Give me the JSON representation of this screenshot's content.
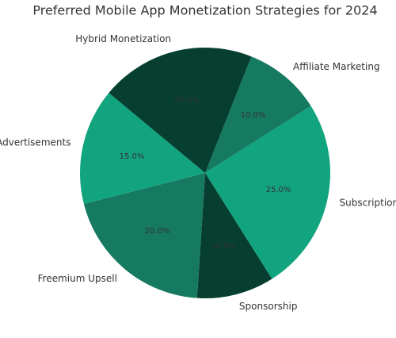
{
  "chart_data": {
    "type": "pie",
    "title": "Preferred Mobile App Monetization Strategies for 2024",
    "categories": [
      "Affiliate Marketing",
      "Subscription",
      "Sponsorship",
      "Freemium Upsell",
      "Advertisements",
      "Hybrid Monetization"
    ],
    "values": [
      10,
      25,
      10,
      20,
      15,
      20
    ],
    "value_labels": [
      "10.0%",
      "25.0%",
      "10.0%",
      "20.0%",
      "15.0%",
      "20.0%"
    ],
    "colors": [
      "#157a60",
      "#12a37f",
      "#063f30",
      "#157a60",
      "#12a37f",
      "#063f30"
    ]
  }
}
